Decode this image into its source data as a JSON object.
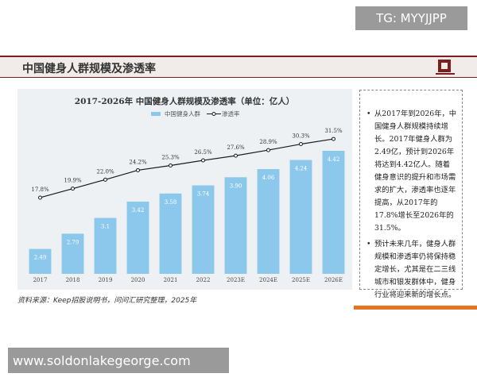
{
  "watermark_top": "TG: MYYJJPP",
  "header": {
    "title": "中国健身人群规模及渗透率"
  },
  "chart_data": {
    "type": "combo",
    "title": "2017-2026年 中国健身人群规模及渗透率（单位：亿人）",
    "categories": [
      "2017",
      "2018",
      "2019",
      "2020",
      "2021",
      "2022",
      "2023E",
      "2024E",
      "2025E",
      "2026E"
    ],
    "series": [
      {
        "name": "中国健身人群",
        "type": "bar",
        "color": "#8cc8ec",
        "values": [
          2.49,
          2.79,
          3.1,
          3.42,
          3.58,
          3.74,
          3.9,
          4.06,
          4.24,
          4.42
        ],
        "value_labels": [
          "2.49",
          "2.79",
          "3.1",
          "3.42",
          "3.58",
          "3.74",
          "3.90",
          "4.06",
          "4.24",
          "4.42"
        ]
      },
      {
        "name": "渗透率",
        "type": "line",
        "axis": "y2",
        "color": "#1a1a1a",
        "values": [
          17.8,
          19.9,
          22.0,
          24.2,
          25.3,
          26.5,
          27.6,
          28.9,
          30.3,
          31.5
        ],
        "value_labels": [
          "17.8%",
          "19.9%",
          "22.0%",
          "24.2%",
          "25.3%",
          "26.5%",
          "27.6%",
          "28.9%",
          "30.3%",
          "31.5%"
        ]
      }
    ],
    "ylim": [
      2,
      5.2
    ],
    "y2lim": [
      0,
      38
    ],
    "grid": false,
    "legend": "top"
  },
  "notes": [
    "从2017年到2026年，中国健身人群规模持续增长。2017年健身人群为2.49亿，预计到2026年将达到4.42亿人。随着健身意识的提升和市场需求的扩大，渗透率也逐年提高，从2017年的17.8%增长至2026年的31.5%。",
    "预计未来几年，健身人群规模和渗透率仍将保持稳定增长，尤其是在二三线城市和银发群体中，健身行业将迎来新的增长点。"
  ],
  "source": "资料来源：Keep招股说明书，问问汇研究整理，2025年",
  "watermark_bottom": "www.soldonlakegeorge.com"
}
